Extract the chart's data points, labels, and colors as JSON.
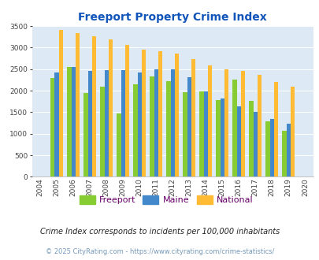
{
  "title": "Freeport Property Crime Index",
  "years": [
    2004,
    2005,
    2006,
    2007,
    2008,
    2009,
    2010,
    2011,
    2012,
    2013,
    2014,
    2015,
    2016,
    2017,
    2018,
    2019,
    2020
  ],
  "freeport": [
    null,
    2300,
    2550,
    1950,
    2100,
    1470,
    2150,
    2330,
    2220,
    1960,
    1980,
    1790,
    2260,
    1760,
    1290,
    1070,
    null
  ],
  "maine": [
    null,
    2430,
    2550,
    2460,
    2480,
    2470,
    2430,
    2490,
    2500,
    2310,
    1990,
    1820,
    1640,
    1500,
    1340,
    1240,
    null
  ],
  "national": [
    null,
    3400,
    3330,
    3260,
    3190,
    3060,
    2950,
    2920,
    2860,
    2730,
    2590,
    2490,
    2450,
    2370,
    2200,
    2100,
    null
  ],
  "freeport_color": "#88cc33",
  "maine_color": "#4488cc",
  "national_color": "#ffbb33",
  "bg_color": "#ddeaf5",
  "ylim": [
    0,
    3500
  ],
  "yticks": [
    0,
    500,
    1000,
    1500,
    2000,
    2500,
    3000,
    3500
  ],
  "subtitle": "Crime Index corresponds to incidents per 100,000 inhabitants",
  "footer": "© 2025 CityRating.com - https://www.cityrating.com/crime-statistics/",
  "title_color": "#1155bb",
  "subtitle_color": "#222222",
  "footer_color": "#7799bb",
  "legend_label_color": "#660066",
  "legend_labels": [
    "Freeport",
    "Maine",
    "National"
  ]
}
